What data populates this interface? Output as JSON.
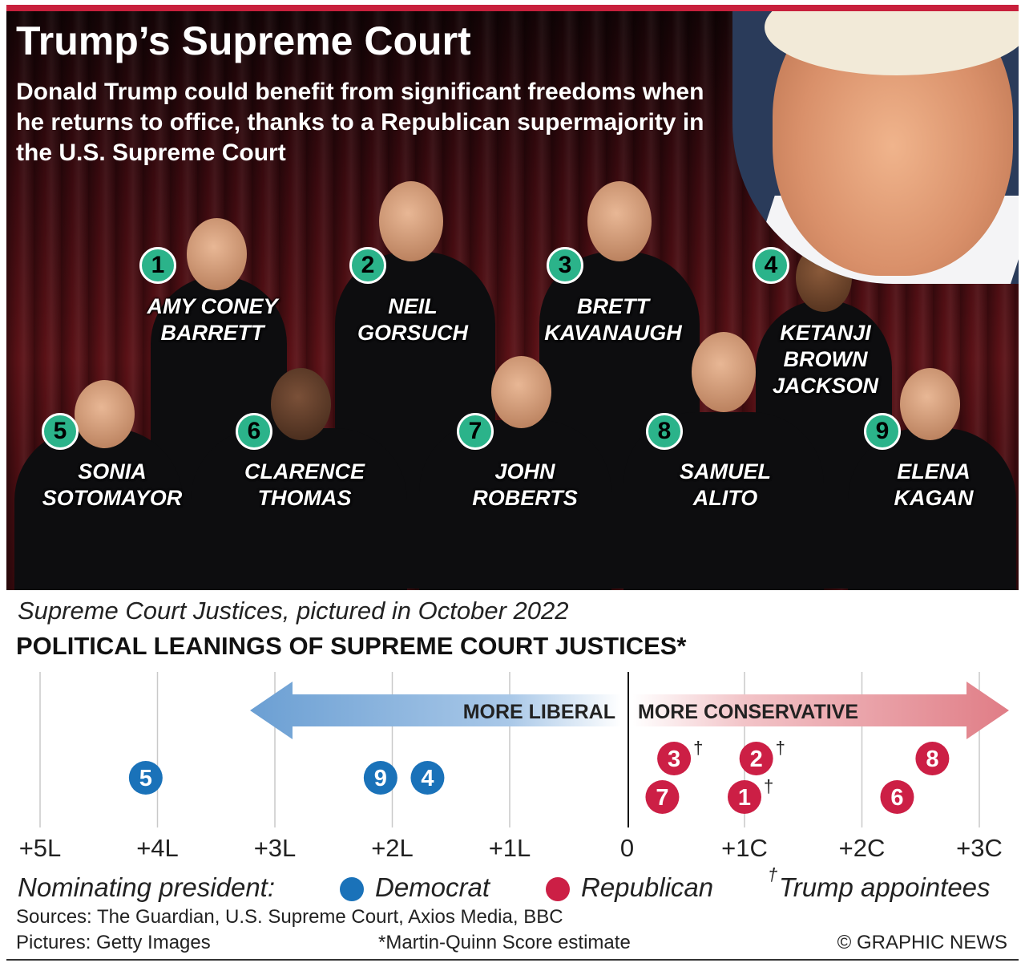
{
  "header": {
    "title": "Trump’s Supreme Court",
    "subtitle": "Donald Trump could benefit from significant freedoms when he returns to office, thanks to a Republican supermajority in the U.S. Supreme Court"
  },
  "justices": [
    {
      "num": "1",
      "name": "AMY CONEY BARRETT"
    },
    {
      "num": "2",
      "name": "NEIL GORSUCH"
    },
    {
      "num": "3",
      "name": "BRETT KAVANAUGH"
    },
    {
      "num": "4",
      "name": "KETANJI BROWN JACKSON"
    },
    {
      "num": "5",
      "name": "SONIA SOTOMAYOR"
    },
    {
      "num": "6",
      "name": "CLARENCE THOMAS"
    },
    {
      "num": "7",
      "name": "JOHN ROBERTS"
    },
    {
      "num": "8",
      "name": "SAMUEL ALITO"
    },
    {
      "num": "9",
      "name": "ELENA KAGAN"
    }
  ],
  "caption": "Supreme Court Justices, pictured in October 2022",
  "legend": {
    "label": "Nominating president:",
    "democrat": "Democrat",
    "republican": "Republican",
    "dagger": "†",
    "trump": "Trump appointees"
  },
  "footer": {
    "sources": "Sources: The Guardian, U.S. Supreme Court, Axios Media, BBC",
    "pictures": "Pictures: Getty Images",
    "footnote": "*Martin-Quinn Score estimate",
    "credit": "© GRAPHIC NEWS"
  },
  "colors": {
    "democrat": "#1a72b9",
    "republican": "#cc1f45",
    "badge": "#2bb38a",
    "accent": "#c8203c"
  },
  "chart_data": {
    "type": "scatter",
    "title": "POLITICAL LEANINGS OF SUPREME COURT JUSTICES*",
    "x_ticks": [
      "+5L",
      "+4L",
      "+3L",
      "+2L",
      "+1L",
      "0",
      "+1C",
      "+2C",
      "+3C"
    ],
    "x_tick_values": [
      -5,
      -4,
      -3,
      -2,
      -1,
      0,
      1,
      2,
      3
    ],
    "xlim": [
      -5,
      3
    ],
    "left_arrow_label": "MORE LIBERAL",
    "right_arrow_label": "MORE CONSERVATIVE",
    "grid": true,
    "points": [
      {
        "label": "1",
        "x": 1.0,
        "party": "republican",
        "trump": true
      },
      {
        "label": "2",
        "x": 1.1,
        "party": "republican",
        "trump": true
      },
      {
        "label": "3",
        "x": 0.4,
        "party": "republican",
        "trump": true
      },
      {
        "label": "4",
        "x": -1.7,
        "party": "democrat",
        "trump": false
      },
      {
        "label": "5",
        "x": -4.1,
        "party": "democrat",
        "trump": false
      },
      {
        "label": "6",
        "x": 2.3,
        "party": "republican",
        "trump": false
      },
      {
        "label": "7",
        "x": 0.3,
        "party": "republican",
        "trump": false
      },
      {
        "label": "8",
        "x": 2.6,
        "party": "republican",
        "trump": false
      },
      {
        "label": "9",
        "x": -2.1,
        "party": "democrat",
        "trump": false
      }
    ]
  }
}
